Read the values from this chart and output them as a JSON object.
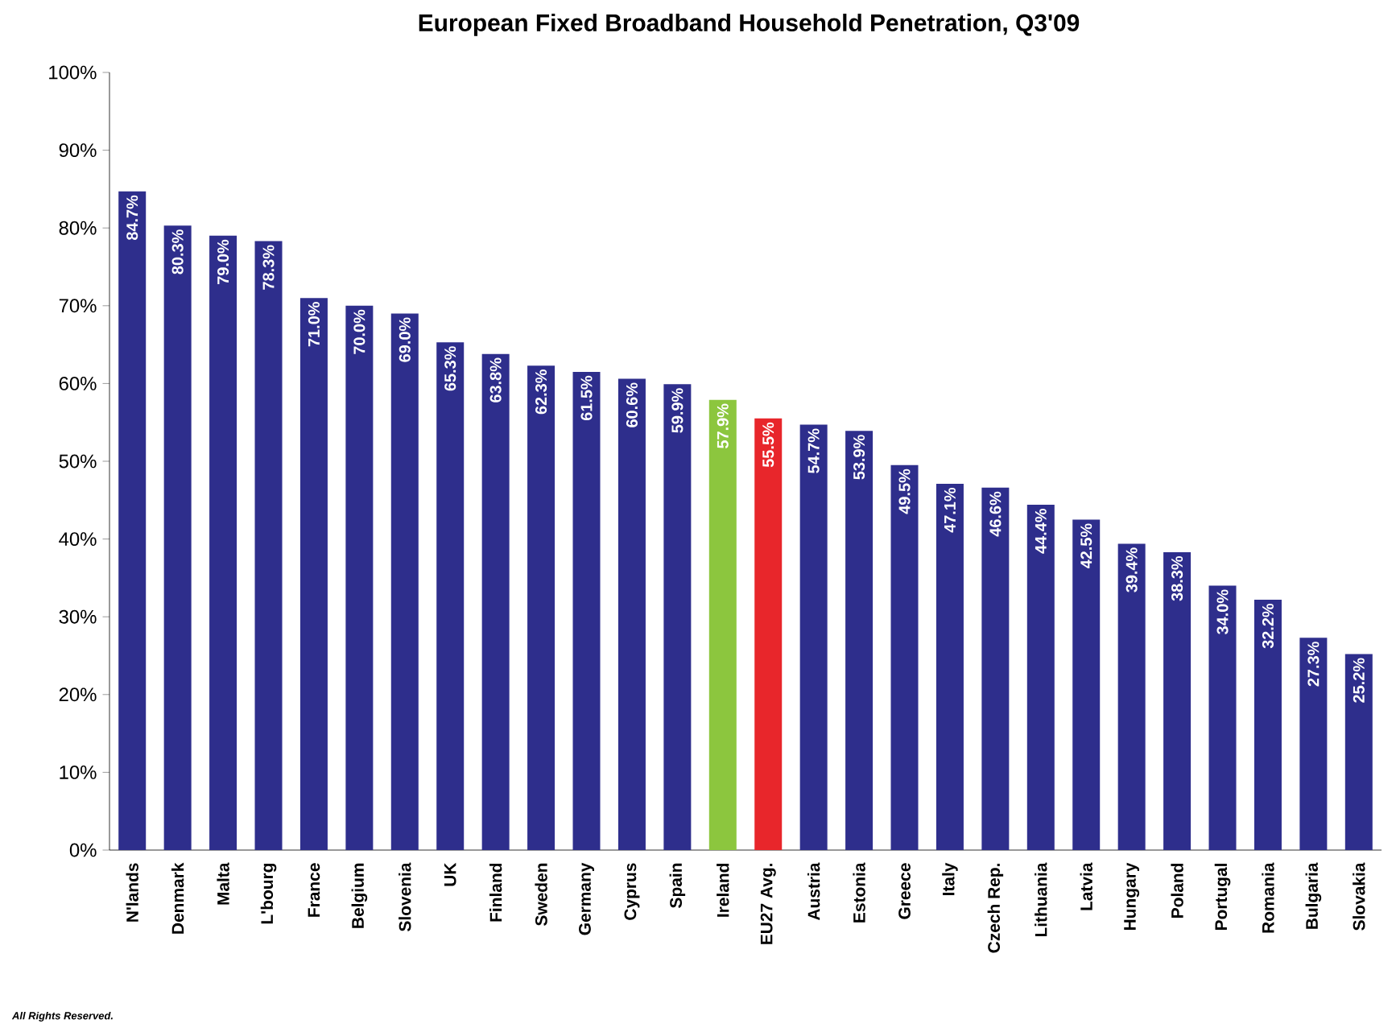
{
  "chart_data": {
    "type": "bar",
    "title": "European Fixed Broadband Household Penetration, Q3'09",
    "categories": [
      "N'lands",
      "Denmark",
      "Malta",
      "L'bourg",
      "France",
      "Belgium",
      "Slovenia",
      "UK",
      "Finland",
      "Sweden",
      "Germany",
      "Cyprus",
      "Spain",
      "Ireland",
      "EU27 Avg.",
      "Austria",
      "Estonia",
      "Greece",
      "Italy",
      "Czech Rep.",
      "Lithuania",
      "Latvia",
      "Hungary",
      "Poland",
      "Portugal",
      "Romania",
      "Bulgaria",
      "Slovakia"
    ],
    "values": [
      84.7,
      80.3,
      79.0,
      78.3,
      71.0,
      70.0,
      69.0,
      65.3,
      63.8,
      62.3,
      61.5,
      60.6,
      59.9,
      57.9,
      55.5,
      54.7,
      53.9,
      49.5,
      47.1,
      46.6,
      44.4,
      42.5,
      39.4,
      38.3,
      34.0,
      32.2,
      27.3,
      25.2
    ],
    "value_labels": [
      "84.7%",
      "80.3%",
      "79.0%",
      "78.3%",
      "71.0%",
      "70.0%",
      "69.0%",
      "65.3%",
      "63.8%",
      "62.3%",
      "61.5%",
      "60.6%",
      "59.9%",
      "57.9%",
      "55.5%",
      "54.7%",
      "53.9%",
      "49.5%",
      "47.1%",
      "46.6%",
      "44.4%",
      "42.5%",
      "39.4%",
      "38.3%",
      "34.0%",
      "32.2%",
      "27.3%",
      "25.2%"
    ],
    "colors": [
      "#2e2e8c",
      "#2e2e8c",
      "#2e2e8c",
      "#2e2e8c",
      "#2e2e8c",
      "#2e2e8c",
      "#2e2e8c",
      "#2e2e8c",
      "#2e2e8c",
      "#2e2e8c",
      "#2e2e8c",
      "#2e2e8c",
      "#2e2e8c",
      "#8cc63e",
      "#e8262b",
      "#2e2e8c",
      "#2e2e8c",
      "#2e2e8c",
      "#2e2e8c",
      "#2e2e8c",
      "#2e2e8c",
      "#2e2e8c",
      "#2e2e8c",
      "#2e2e8c",
      "#2e2e8c",
      "#2e2e8c",
      "#2e2e8c",
      "#2e2e8c"
    ],
    "ylim": [
      0,
      100
    ],
    "yticks": [
      {
        "value": 0,
        "label": "0%"
      },
      {
        "value": 10,
        "label": "10%"
      },
      {
        "value": 20,
        "label": "20%"
      },
      {
        "value": 30,
        "label": "30%"
      },
      {
        "value": 40,
        "label": "40%"
      },
      {
        "value": 50,
        "label": "50%"
      },
      {
        "value": 60,
        "label": "60%"
      },
      {
        "value": 70,
        "label": "70%"
      },
      {
        "value": 80,
        "label": "80%"
      },
      {
        "value": 90,
        "label": "90%"
      },
      {
        "value": 100,
        "label": "100%"
      }
    ],
    "annotations": [
      "All Rights Reserved."
    ]
  }
}
